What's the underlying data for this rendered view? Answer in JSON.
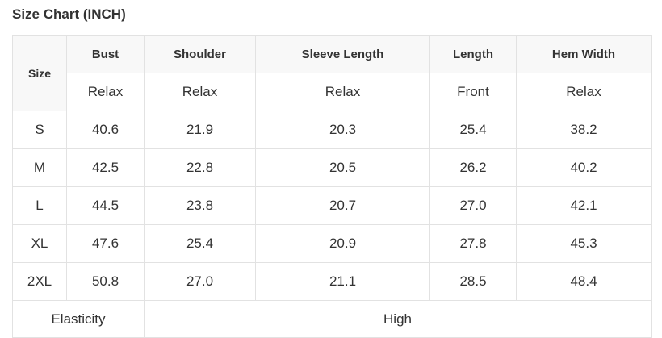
{
  "title": "Size Chart (INCH)",
  "table": {
    "size_header": "Size",
    "columns": [
      {
        "label": "Bust",
        "sub": "Relax"
      },
      {
        "label": "Shoulder",
        "sub": "Relax"
      },
      {
        "label": "Sleeve Length",
        "sub": "Relax"
      },
      {
        "label": "Length",
        "sub": "Front"
      },
      {
        "label": "Hem Width",
        "sub": "Relax"
      }
    ],
    "rows": [
      {
        "size": "S",
        "values": [
          "40.6",
          "21.9",
          "20.3",
          "25.4",
          "38.2"
        ]
      },
      {
        "size": "M",
        "values": [
          "42.5",
          "22.8",
          "20.5",
          "26.2",
          "40.2"
        ]
      },
      {
        "size": "L",
        "values": [
          "44.5",
          "23.8",
          "20.7",
          "27.0",
          "42.1"
        ]
      },
      {
        "size": "XL",
        "values": [
          "47.6",
          "25.4",
          "20.9",
          "27.8",
          "45.3"
        ]
      },
      {
        "size": "2XL",
        "values": [
          "50.8",
          "27.0",
          "21.1",
          "28.5",
          "48.4"
        ]
      }
    ],
    "elasticity_label": "Elasticity",
    "elasticity_value": "High"
  }
}
